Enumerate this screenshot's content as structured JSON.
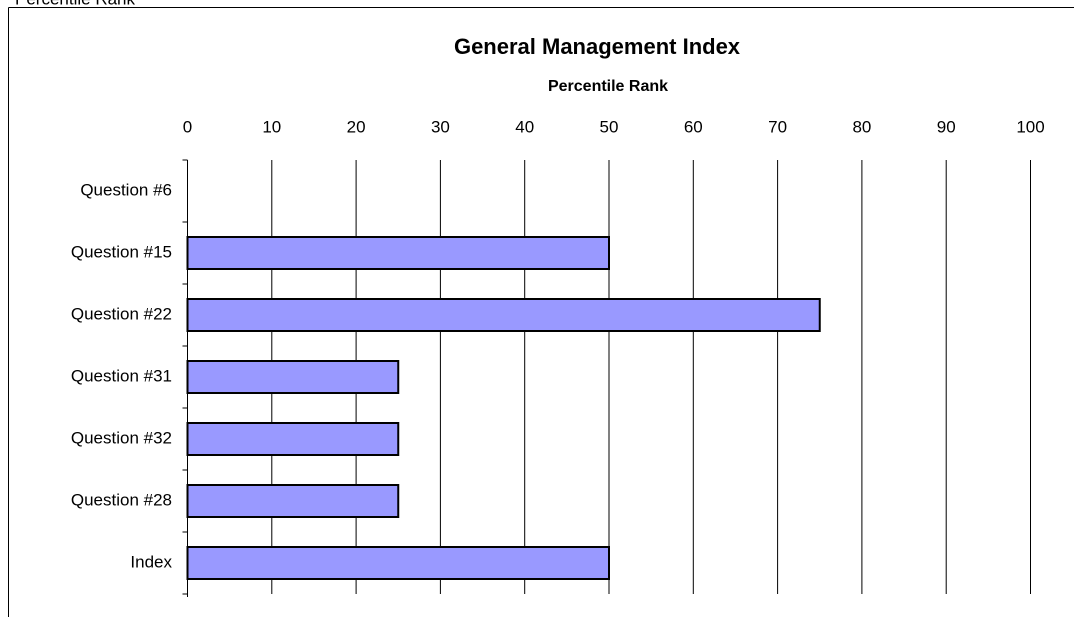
{
  "chart_data": {
    "type": "hbar",
    "caption": "Percentile Rank",
    "title": "General Management Index",
    "xlabel": "Percentile Rank",
    "categories": [
      "Question #6",
      "Question #15",
      "Question #22",
      "Question #31",
      "Question #32",
      "Question #28",
      "Index"
    ],
    "values": [
      0,
      50,
      75,
      25,
      25,
      25,
      50
    ],
    "color": "#9999ff",
    "xlim": [
      0,
      100
    ],
    "xticks": [
      0,
      10,
      20,
      30,
      40,
      50,
      60,
      70,
      80,
      90,
      100
    ],
    "grid": true
  }
}
